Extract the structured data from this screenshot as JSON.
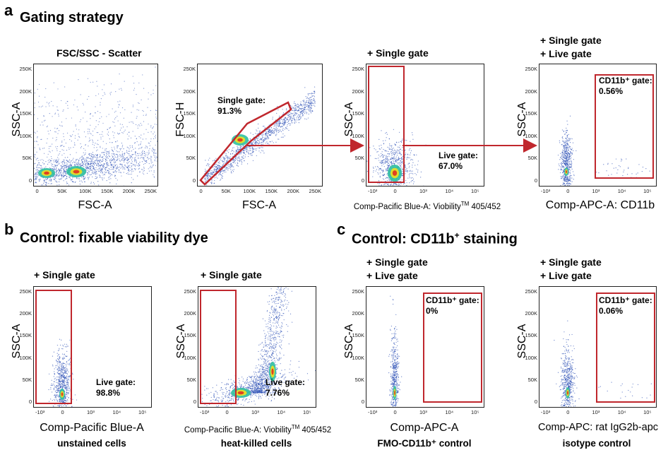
{
  "panel_a": {
    "letter": "a",
    "title": "Gating strategy",
    "plots": [
      {
        "title": "FSC/SSC - Scatter",
        "xlabel": "FSC-A",
        "ylabel": "SSC-A",
        "xticks": [
          "0",
          "50K",
          "100K",
          "150K",
          "200K",
          "250K"
        ],
        "yticks": [
          "250K",
          "200K",
          "150K",
          "100K",
          "50K",
          "0"
        ]
      },
      {
        "title": "",
        "xlabel": "FSC-A",
        "ylabel": "FSC-H",
        "xticks": [
          "0",
          "50K",
          "100K",
          "150K",
          "200K",
          "250K"
        ],
        "yticks": [
          "250K",
          "200K",
          "150K",
          "100K",
          "50K",
          "0"
        ],
        "gate_label": "Single gate:",
        "gate_value": "91.3%"
      },
      {
        "title": "+ Single gate",
        "xlabel_main": "Comp-Pacific Blue-A: Viobility",
        "xlabel_sup": "TM",
        "xlabel_tail": " 405/452",
        "ylabel": "SSC-A",
        "xticks": [
          "-10³",
          "0",
          "10³",
          "10⁴",
          "10⁵"
        ],
        "yticks": [
          "250K",
          "200K",
          "150K",
          "100K",
          "50K",
          "0"
        ],
        "gate_label": "Live gate:",
        "gate_value": "67.0%"
      },
      {
        "title_line1": "+ Single gate",
        "title_line2": "+ Live gate",
        "xlabel": "Comp-APC-A: CD11b",
        "ylabel": "SSC-A",
        "xticks": [
          "-10³",
          "0",
          "10³",
          "10⁴",
          "10⁵"
        ],
        "yticks": [
          "250K",
          "200K",
          "150K",
          "100K",
          "50K",
          "0"
        ],
        "gate_label": "CD11b⁺ gate:",
        "gate_value": "0.56%"
      }
    ]
  },
  "panel_b": {
    "letter": "b",
    "title": "Control: fixable viability dye",
    "plots": [
      {
        "title": "+ Single gate",
        "xlabel": "Comp-Pacific Blue-A",
        "ylabel": "SSC-A",
        "xticks": [
          "-10³",
          "0",
          "10³",
          "10⁴",
          "10⁵"
        ],
        "yticks": [
          "250K",
          "200K",
          "150K",
          "100K",
          "50K",
          "0"
        ],
        "gate_label": "Live gate:",
        "gate_value": "98.8%",
        "footer": "unstained cells"
      },
      {
        "title": "+ Single gate",
        "xlabel_main": "Comp-Pacific Blue-A: Viobility",
        "xlabel_sup": "TM",
        "xlabel_tail": " 405/452",
        "ylabel": "SSC-A",
        "xticks": [
          "-10³",
          "0",
          "10³",
          "10⁴",
          "10⁵"
        ],
        "yticks": [
          "250K",
          "200K",
          "150K",
          "100K",
          "50K",
          "0"
        ],
        "gate_label": "Live gate:",
        "gate_value": "7.76%",
        "footer": "heat-killed cells"
      }
    ]
  },
  "panel_c": {
    "letter": "c",
    "title_main": "Control: CD11b",
    "title_sup": "+",
    "title_tail": " staining",
    "plots": [
      {
        "title_line1": "+ Single gate",
        "title_line2": "+ Live gate",
        "xlabel": "Comp-APC-A",
        "ylabel": "SSC-A",
        "xticks": [
          "-10³",
          "0",
          "10³",
          "10⁴",
          "10⁵"
        ],
        "yticks": [
          "250K",
          "200K",
          "150K",
          "100K",
          "50K",
          "0"
        ],
        "gate_label": "CD11b⁺ gate:",
        "gate_value": "0%",
        "footer": "FMO-CD11b⁺ control"
      },
      {
        "title_line1": "+ Single gate",
        "title_line2": "+ Live gate",
        "xlabel": "Comp-APC: rat IgG2b-apc",
        "ylabel": "SSC-A",
        "xticks": [
          "-10³",
          "0",
          "10³",
          "10⁴",
          "10⁵"
        ],
        "yticks": [
          "250K",
          "200K",
          "150K",
          "100K",
          "50K",
          "0"
        ],
        "gate_label": "CD11b⁺ gate:",
        "gate_value": "0.06%",
        "footer": "isotype control"
      }
    ]
  },
  "colors": {
    "gate": "#c0272d",
    "dots_low": "#2b4fb5",
    "dots_mid": "#30c0a0",
    "dots_high": "#f0e020",
    "dots_peak": "#e03020"
  }
}
